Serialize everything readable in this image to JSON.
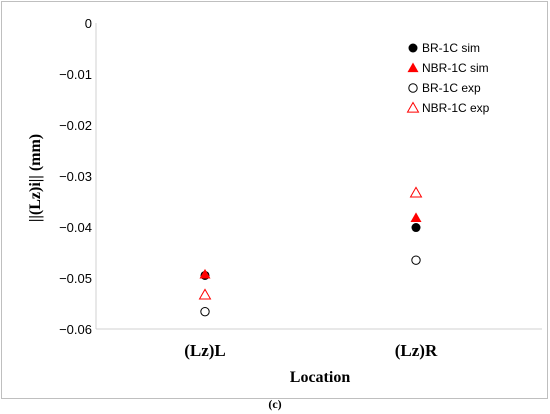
{
  "caption": "(c)",
  "chart_data": {
    "type": "scatter",
    "xlabel": "Location",
    "ylabel": "||(Lz)i||  (mm)",
    "categories": [
      "(Lz)L",
      "(Lz)R"
    ],
    "ylim": [
      -0.06,
      0
    ],
    "yticks": [
      0,
      -0.01,
      -0.02,
      -0.03,
      -0.04,
      -0.05,
      -0.06
    ],
    "ytick_labels": [
      "0",
      "−0.01",
      "−0.02",
      "−0.03",
      "−0.04",
      "−0.05",
      "−0.06"
    ],
    "grid": false,
    "legend_position": "top-right",
    "series": [
      {
        "name": "BR-1C sim",
        "marker": "filled-circle",
        "color": "#000000",
        "values": [
          -0.0495,
          -0.0401
        ]
      },
      {
        "name": "NBR-1C sim",
        "marker": "filled-triangle",
        "color": "#ff0000",
        "values": [
          -0.0493,
          -0.0382
        ]
      },
      {
        "name": "BR-1C exp",
        "marker": "open-circle",
        "color": "#000000",
        "values": [
          -0.0566,
          -0.0465
        ]
      },
      {
        "name": "NBR-1C exp",
        "marker": "open-triangle",
        "color": "#ff0000",
        "values": [
          -0.0533,
          -0.0333
        ]
      }
    ]
  }
}
